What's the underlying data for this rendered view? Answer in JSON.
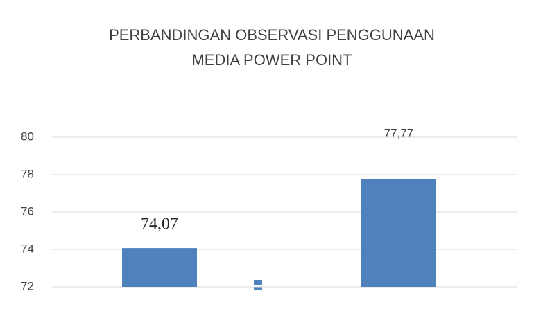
{
  "chart_data": {
    "type": "bar",
    "title": [
      "PERBANDINGAN OBSERVASI PENGGUNAAN",
      "MEDIA POWER POINT"
    ],
    "categories": [
      null,
      null
    ],
    "values": [
      74.07,
      77.77
    ],
    "value_labels": [
      "74,07",
      "77,77"
    ],
    "color": "#4f81bd",
    "ylim": [
      72,
      80
    ],
    "yticks": [
      72,
      74,
      76,
      78,
      80
    ],
    "grid": true
  }
}
